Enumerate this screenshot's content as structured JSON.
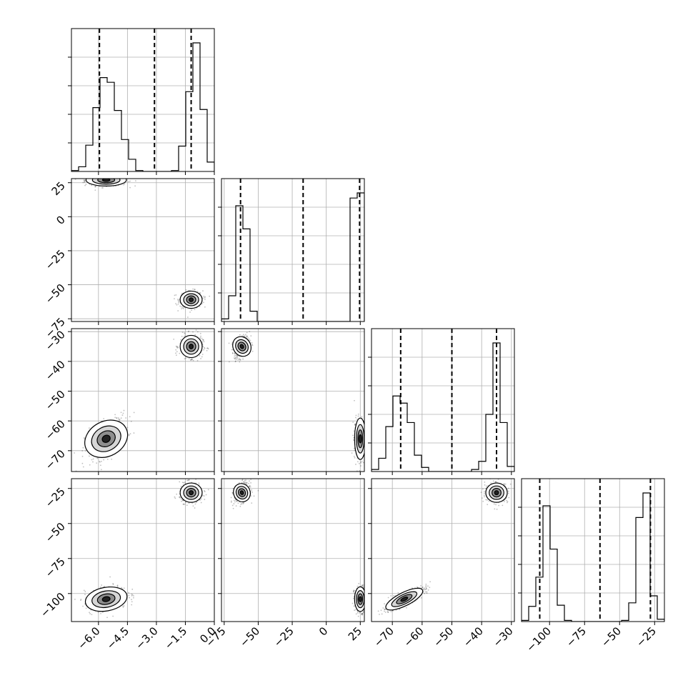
{
  "chart_data": {
    "type": "corner",
    "title": "",
    "n_params": 4,
    "parameters": [
      {
        "index": 0,
        "label": "",
        "range": [
          -7.4,
          0.0
        ],
        "ticks": [
          -6.0,
          -4.5,
          -3.0,
          -1.5,
          0.0
        ],
        "tick_labels": [
          "−6.0",
          "−4.5",
          "−3.0",
          "−1.5",
          "0.0"
        ]
      },
      {
        "index": 1,
        "label": "",
        "range": [
          -77,
          28
        ],
        "ticks": [
          -75,
          -50,
          -25,
          0,
          25
        ],
        "tick_labels": [
          "−75",
          "−50",
          "−25",
          "0",
          "25"
        ]
      },
      {
        "index": 2,
        "label": "",
        "range": [
          -77,
          -29
        ],
        "ticks": [
          -70,
          -60,
          -50,
          -40,
          -30
        ],
        "tick_labels": [
          "−70",
          "−60",
          "−50",
          "−40",
          "−30"
        ]
      },
      {
        "index": 3,
        "label": "",
        "range": [
          -120,
          -18
        ],
        "ticks": [
          -100,
          -75,
          -50,
          -25
        ],
        "tick_labels": [
          "−100",
          "−75",
          "−50",
          "−25"
        ]
      }
    ],
    "diagonal_histograms": [
      {
        "param": 0,
        "edges": [
          -7.4,
          -7.03,
          -6.66,
          -6.29,
          -5.92,
          -5.55,
          -5.18,
          -4.81,
          -4.44,
          -4.07,
          -3.7,
          -3.33,
          -2.96,
          -2.59,
          -2.22,
          -1.85,
          -1.48,
          -1.11,
          -0.74,
          -0.37,
          0.0
        ],
        "counts": [
          1,
          5,
          28,
          68,
          100,
          95,
          65,
          34,
          13,
          1,
          0,
          0,
          0,
          0,
          1,
          27,
          85,
          137,
          66,
          10
        ],
        "quantiles": [
          -5.95,
          -3.1,
          -1.2
        ]
      },
      {
        "param": 1,
        "edges": [
          -77,
          -71.75,
          -66.5,
          -61.25,
          -56,
          -50.75,
          -45.5,
          -40.25,
          -35,
          -29.75,
          -24.5,
          -19.25,
          -14,
          -8.75,
          -3.5,
          1.75,
          7,
          12.25,
          17.5,
          22.75,
          28
        ],
        "counts": [
          2,
          20,
          90,
          72,
          8,
          0,
          0,
          0,
          0,
          0,
          0,
          0,
          0,
          0,
          0,
          0,
          0,
          0,
          96,
          100
        ],
        "quantiles": [
          -63,
          -17,
          24.5
        ]
      },
      {
        "param": 2,
        "edges": [
          -77,
          -74.6,
          -72.2,
          -69.8,
          -67.4,
          -65,
          -62.6,
          -60.2,
          -57.8,
          -55.4,
          -53,
          -50.6,
          -48.2,
          -45.8,
          -43.4,
          -41,
          -38.6,
          -36.2,
          -33.8,
          -31.4,
          -29
        ],
        "counts": [
          2,
          13,
          44,
          74,
          67,
          48,
          16,
          4,
          0,
          0,
          0,
          0,
          0,
          0,
          2,
          10,
          56,
          126,
          48,
          5
        ],
        "quantiles": [
          -67.2,
          -50,
          -35
        ]
      },
      {
        "param": 3,
        "edges": [
          -120,
          -114.9,
          -109.8,
          -104.7,
          -99.6,
          -94.5,
          -89.4,
          -84.3,
          -79.2,
          -74.1,
          -69,
          -63.9,
          -58.8,
          -53.7,
          -48.6,
          -43.5,
          -38.4,
          -33.3,
          -28.2,
          -23.1,
          -18
        ],
        "counts": [
          1,
          13,
          38,
          99,
          62,
          14,
          1,
          0,
          0,
          0,
          0,
          0,
          0,
          0,
          1,
          16,
          89,
          110,
          22,
          2
        ],
        "quantiles": [
          -107,
          -64,
          -28
        ]
      }
    ],
    "joint_clusters": [
      {
        "x_param": 0,
        "y_param": 1,
        "modes": [
          {
            "x": -5.6,
            "y": 27,
            "sx": 0.55,
            "sy": 2.2,
            "rho": 0.0
          },
          {
            "x": -1.2,
            "y": -61,
            "sx": 0.3,
            "sy": 3.2,
            "rho": 0.0
          }
        ]
      },
      {
        "x_param": 0,
        "y_param": 2,
        "modes": [
          {
            "x": -5.6,
            "y": -66,
            "sx": 0.55,
            "sy": 3.6,
            "rho": 0.55
          },
          {
            "x": -1.2,
            "y": -35,
            "sx": 0.3,
            "sy": 1.9,
            "rho": 0.0
          }
        ]
      },
      {
        "x_param": 1,
        "y_param": 2,
        "modes": [
          {
            "x": -62,
            "y": -35,
            "sx": 2.8,
            "sy": 1.9,
            "rho": 0.4
          },
          {
            "x": 25,
            "y": -66,
            "sx": 2.2,
            "sy": 3.6,
            "rho": 0.0
          }
        ]
      },
      {
        "x_param": 0,
        "y_param": 3,
        "modes": [
          {
            "x": -5.6,
            "y": -104,
            "sx": 0.55,
            "sy": 4.5,
            "rho": 0.3
          },
          {
            "x": -1.2,
            "y": -28,
            "sx": 0.3,
            "sy": 3.5,
            "rho": 0.0
          }
        ]
      },
      {
        "x_param": 1,
        "y_param": 3,
        "modes": [
          {
            "x": -62,
            "y": -28,
            "sx": 2.8,
            "sy": 3.5,
            "rho": 0.3
          },
          {
            "x": 25,
            "y": -104,
            "sx": 2.2,
            "sy": 4.5,
            "rho": 0.0
          }
        ]
      },
      {
        "x_param": 2,
        "y_param": 3,
        "modes": [
          {
            "x": -66,
            "y": -104,
            "sx": 3.6,
            "sy": 4.5,
            "rho": 0.85
          },
          {
            "x": -35,
            "y": -28,
            "sx": 1.9,
            "sy": 3.5,
            "rho": 0.0
          }
        ]
      }
    ],
    "grid": true,
    "legend": "none"
  }
}
